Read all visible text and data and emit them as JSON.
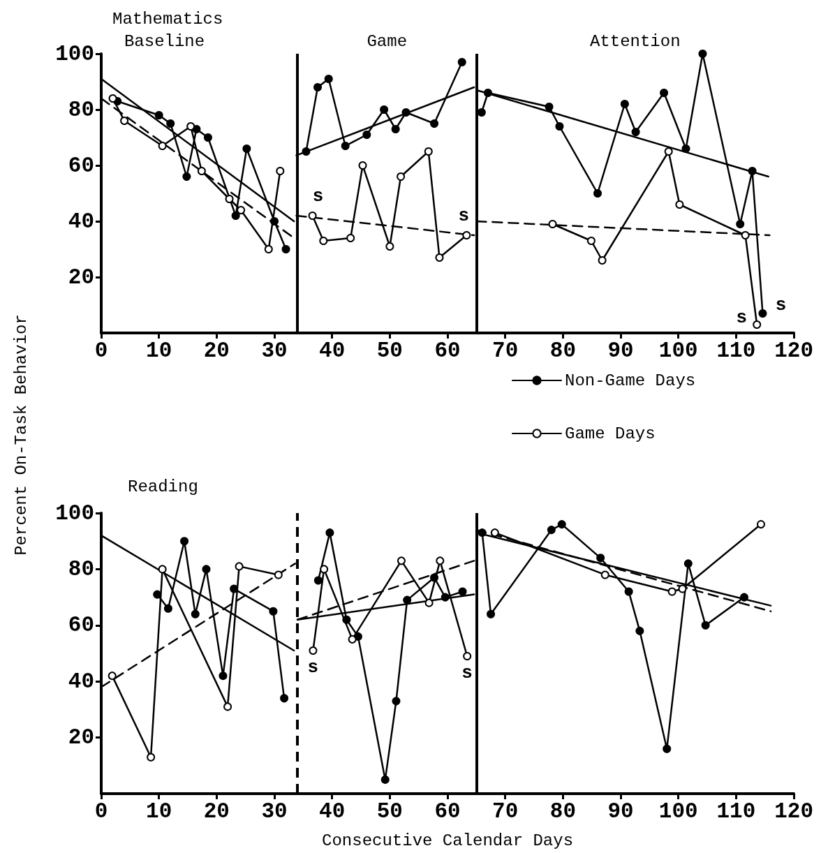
{
  "chart_data": [
    {
      "type": "line",
      "title": "Mathematics",
      "ylabel": "Percent On-Task Behavior",
      "xlim": [
        0,
        120
      ],
      "ylim": [
        0,
        100
      ],
      "xticks": [
        0,
        10,
        20,
        30,
        40,
        50,
        60,
        70,
        80,
        90,
        100,
        110,
        120
      ],
      "yticks": [
        20,
        40,
        60,
        80,
        100
      ],
      "grid": false,
      "legend": "bottom right",
      "line_style": "solid",
      "ref_lines": [
        {
          "axis": "x",
          "value": 34,
          "line_style": "solid"
        },
        {
          "axis": "x",
          "value": 65,
          "line_style": "solid"
        }
      ],
      "annotations": [
        "Baseline",
        "Game",
        "Attention",
        {
          "text": "s",
          "x": 36.6,
          "y": 42
        },
        {
          "text": "s",
          "x": 63.3,
          "y": 35
        },
        {
          "text": "s",
          "x": 113.6,
          "y": 3
        },
        {
          "text": "s",
          "x": 114.6,
          "y": 7
        }
      ],
      "series": [
        {
          "name": "Non-Game Days",
          "color": "#000000",
          "marker": "circle",
          "x": [
            2.8,
            10,
            12,
            14.8,
            16.5,
            18.5,
            23.3,
            25.2,
            30,
            32,
            34,
            35.5,
            37.5,
            39.4,
            42.3,
            46,
            49,
            51,
            52.8,
            57.7,
            62.5,
            65,
            65.9,
            67,
            77.6,
            79.4,
            86,
            90.7,
            92.6,
            97.5,
            101.3,
            104.2,
            110.7,
            112.8,
            114.6
          ],
          "values": [
            83,
            78,
            75,
            56,
            73,
            70,
            42,
            66,
            40,
            30,
            null,
            65,
            88,
            91,
            67,
            71,
            80,
            73,
            79,
            75,
            97,
            null,
            79,
            86,
            81,
            74,
            50,
            82,
            72,
            86,
            66,
            100,
            39,
            58,
            7
          ]
        },
        {
          "name": "Game Days",
          "color": "#000000",
          "marker": "circle",
          "x": [
            2,
            4,
            10.6,
            15.5,
            17.4,
            22.2,
            24.2,
            29,
            31,
            34,
            36.6,
            38.5,
            43.2,
            45.3,
            50,
            51.9,
            56.7,
            58.6,
            63.3,
            65,
            78.2,
            84.9,
            86.8,
            98.3,
            100.2,
            111.6,
            113.6
          ],
          "values": [
            84,
            76,
            67,
            74,
            58,
            48,
            44,
            30,
            58,
            null,
            42,
            33,
            34,
            60,
            31,
            56,
            65,
            27,
            35,
            null,
            39,
            33,
            26,
            65,
            46,
            35,
            3
          ]
        },
        {
          "type": "line",
          "color": "#000000",
          "marker": "none",
          "line_style": "solid",
          "x": [
            0,
            33.4
          ],
          "values": [
            91,
            40
          ]
        },
        {
          "type": "line",
          "color": "#000000",
          "marker": "none",
          "line_style": "solid",
          "x": [
            33.8,
            64.6
          ],
          "values": [
            63.6,
            88
          ]
        },
        {
          "type": "line",
          "color": "#000000",
          "marker": "none",
          "line_style": "solid",
          "x": [
            65,
            115.6
          ],
          "values": [
            87,
            56
          ]
        },
        {
          "type": "line",
          "color": "#000000",
          "marker": "none",
          "line_style": "dashed",
          "x": [
            0,
            33.4
          ],
          "values": [
            84,
            34
          ]
        },
        {
          "type": "line",
          "color": "#000000",
          "marker": "none",
          "line_style": "dashed",
          "x": [
            33.8,
            64.6
          ],
          "values": [
            42,
            35
          ]
        },
        {
          "type": "line",
          "color": "#000000",
          "marker": "none",
          "line_style": "dashed",
          "x": [
            65,
            115.8
          ],
          "values": [
            40,
            35
          ]
        }
      ]
    },
    {
      "type": "line",
      "title": "Reading",
      "xlabel": "Consecutive Calendar Days",
      "xlim": [
        0,
        120
      ],
      "ylim": [
        0,
        100
      ],
      "xticks": [
        0,
        10,
        20,
        30,
        40,
        50,
        60,
        70,
        80,
        90,
        100,
        110,
        120
      ],
      "yticks": [
        20,
        40,
        60,
        80,
        100
      ],
      "grid": false,
      "line_style": "solid",
      "ref_lines": [
        {
          "axis": "x",
          "value": 34,
          "line_style": "dashed"
        },
        {
          "axis": "x",
          "value": 65,
          "line_style": "solid"
        }
      ],
      "annotations": [
        {
          "text": "s",
          "x": 36.7,
          "y": 51
        },
        {
          "text": "s",
          "x": 63.4,
          "y": 49
        }
      ],
      "series": [
        {
          "color": "#000000",
          "marker": "circle",
          "x": [
            9.7,
            11.6,
            14.4,
            16.3,
            18.2,
            21.1,
            23,
            29.8,
            31.7,
            34,
            37.6,
            39.6,
            42.5,
            44.5,
            49.2,
            51.1,
            53,
            57.7,
            59.6,
            62.6,
            65,
            66,
            67.5,
            78,
            79.8,
            86.5,
            91.4,
            93.3,
            98,
            101.7,
            104.7,
            111.4
          ],
          "values": [
            71,
            66,
            90,
            64,
            80,
            42,
            73,
            65,
            34,
            null,
            76,
            93,
            62,
            56,
            5,
            33,
            69,
            77,
            70,
            72,
            null,
            93,
            64,
            94,
            96,
            84,
            72,
            58,
            16,
            82,
            60,
            70
          ]
        },
        {
          "color": "#000000",
          "marker": "circle",
          "x": [
            1.9,
            8.6,
            10.6,
            21.9,
            23.9,
            30.7,
            34,
            36.7,
            38.6,
            43.5,
            52,
            56.8,
            58.7,
            63.4,
            65,
            68.2,
            87.3,
            98.9,
            100.7,
            114.3
          ],
          "values": [
            42,
            13,
            80,
            31,
            81,
            78,
            null,
            51,
            80,
            55,
            83,
            68,
            83,
            49,
            null,
            93,
            78,
            72,
            73,
            96
          ]
        },
        {
          "type": "line",
          "color": "#000000",
          "marker": "none",
          "line_style": "solid",
          "x": [
            0,
            33.4
          ],
          "values": [
            92,
            51
          ]
        },
        {
          "type": "line",
          "color": "#000000",
          "marker": "none",
          "line_style": "solid",
          "x": [
            34,
            64.6
          ],
          "values": [
            62,
            71
          ]
        },
        {
          "type": "line",
          "color": "#000000",
          "marker": "none",
          "line_style": "solid",
          "x": [
            65,
            116
          ],
          "values": [
            93,
            67
          ]
        },
        {
          "type": "line",
          "color": "#000000",
          "marker": "none",
          "line_style": "dashed",
          "x": [
            0,
            33.6
          ],
          "values": [
            38,
            82
          ]
        },
        {
          "type": "line",
          "color": "#000000",
          "marker": "none",
          "line_style": "dashed",
          "x": [
            34,
            64.6
          ],
          "values": [
            62,
            83
          ]
        },
        {
          "type": "line",
          "color": "#000000",
          "marker": "none",
          "line_style": "dashed",
          "x": [
            65,
            116
          ],
          "values": [
            94,
            65
          ]
        }
      ]
    }
  ]
}
